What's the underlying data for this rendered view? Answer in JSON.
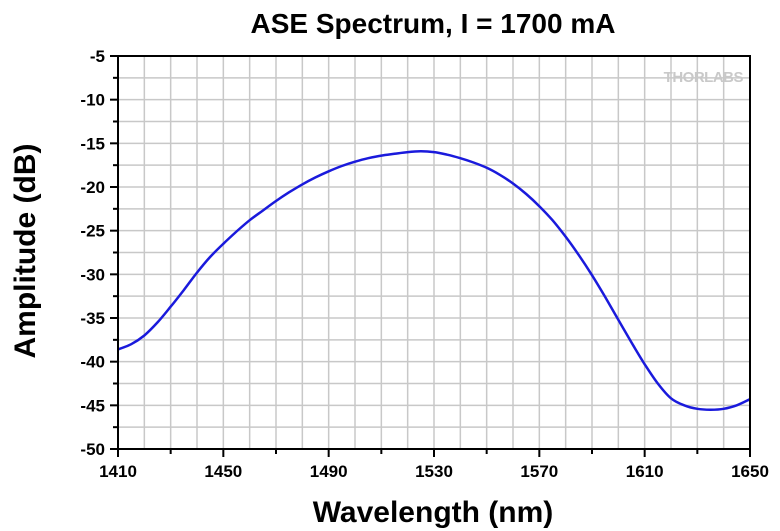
{
  "chart_data": {
    "type": "line",
    "title": "ASE Spectrum, I = 1700 mA",
    "xlabel": "Wavelength (nm)",
    "ylabel": "Amplitude (dB)",
    "xlim": [
      1410,
      1650
    ],
    "ylim": [
      -50,
      -5
    ],
    "xticks": [
      1410,
      1450,
      1490,
      1530,
      1570,
      1610,
      1650
    ],
    "xtick_labels": [
      "1410",
      "1450",
      "1490",
      "1530",
      "1570",
      "1610",
      "1650"
    ],
    "yticks": [
      -5,
      -10,
      -15,
      -20,
      -25,
      -30,
      -35,
      -40,
      -45,
      -50
    ],
    "ytick_labels": [
      "-5",
      "-10",
      "-15",
      "-20",
      "-25",
      "-30",
      "-35",
      "-40",
      "-45",
      "-50"
    ],
    "grid": true,
    "line_color": "#1a1adc",
    "series": [
      {
        "x": [
          1410,
          1415,
          1420,
          1425,
          1430,
          1435,
          1440,
          1445,
          1450,
          1455,
          1460,
          1465,
          1470,
          1475,
          1480,
          1485,
          1490,
          1495,
          1500,
          1505,
          1510,
          1515,
          1520,
          1525,
          1530,
          1535,
          1540,
          1545,
          1550,
          1555,
          1560,
          1565,
          1570,
          1575,
          1580,
          1585,
          1590,
          1595,
          1600,
          1605,
          1610,
          1615,
          1620,
          1625,
          1630,
          1635,
          1640,
          1645,
          1650
        ],
        "y": [
          -38.6,
          -38.0,
          -37.0,
          -35.5,
          -33.7,
          -31.8,
          -29.8,
          -28.0,
          -26.5,
          -25.1,
          -23.8,
          -22.7,
          -21.6,
          -20.6,
          -19.7,
          -18.9,
          -18.2,
          -17.6,
          -17.1,
          -16.7,
          -16.4,
          -16.2,
          -16.0,
          -15.9,
          -16.0,
          -16.3,
          -16.7,
          -17.2,
          -17.8,
          -18.6,
          -19.6,
          -20.8,
          -22.2,
          -23.8,
          -25.7,
          -27.8,
          -30.1,
          -32.6,
          -35.2,
          -37.8,
          -40.3,
          -42.5,
          -44.2,
          -45.0,
          -45.4,
          -45.5,
          -45.4,
          -45.0,
          -44.3
        ]
      }
    ]
  },
  "watermark": "THORLABS"
}
